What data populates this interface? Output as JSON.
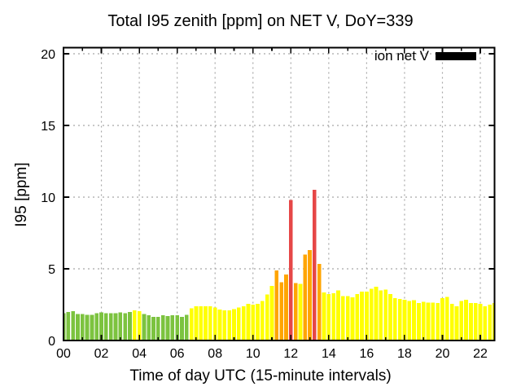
{
  "chart_data": {
    "type": "bar",
    "title": "Total I95 zenith [ppm] on NET V, DoY=339",
    "xlabel": "Time of day UTC (15-minute intervals)",
    "ylabel": "I95 [ppm]",
    "legend": {
      "label": "ion net V",
      "swatch_color": "#000000",
      "position": "top-right-inside"
    },
    "interval_minutes": 15,
    "xlim_hours": [
      0,
      22.75
    ],
    "ylim": [
      0,
      20.4
    ],
    "yticks": [
      0,
      5,
      10,
      15,
      20
    ],
    "xtick_major_hours": [
      0,
      2,
      4,
      6,
      8,
      10,
      12,
      14,
      16,
      18,
      20,
      22
    ],
    "xtick_labels": [
      "00",
      "02",
      "04",
      "06",
      "08",
      "10",
      "12",
      "14",
      "16",
      "18",
      "20",
      "22"
    ],
    "xtick_minor_hours": [
      1,
      3,
      5,
      7,
      9,
      11,
      13,
      15,
      17,
      19,
      21
    ],
    "grid": true,
    "colors": {
      "green": "#7cc33f",
      "yellow": "#ffff00",
      "orange": "#ffa500",
      "red": "#e64747",
      "grid": "#a8a8a8",
      "frame": "#000000",
      "background": "#ffffff"
    },
    "bars": [
      {
        "t": "00:00",
        "v": 1.9,
        "c": "green"
      },
      {
        "t": "00:15",
        "v": 2.0,
        "c": "green"
      },
      {
        "t": "00:30",
        "v": 2.05,
        "c": "green"
      },
      {
        "t": "00:45",
        "v": 1.85,
        "c": "green"
      },
      {
        "t": "01:00",
        "v": 1.85,
        "c": "green"
      },
      {
        "t": "01:15",
        "v": 1.8,
        "c": "green"
      },
      {
        "t": "01:30",
        "v": 1.8,
        "c": "green"
      },
      {
        "t": "01:45",
        "v": 1.9,
        "c": "green"
      },
      {
        "t": "02:00",
        "v": 1.95,
        "c": "green"
      },
      {
        "t": "02:15",
        "v": 1.9,
        "c": "green"
      },
      {
        "t": "02:30",
        "v": 1.9,
        "c": "green"
      },
      {
        "t": "02:45",
        "v": 1.9,
        "c": "green"
      },
      {
        "t": "03:00",
        "v": 1.95,
        "c": "green"
      },
      {
        "t": "03:15",
        "v": 1.9,
        "c": "green"
      },
      {
        "t": "03:30",
        "v": 2.0,
        "c": "green"
      },
      {
        "t": "03:45",
        "v": 2.1,
        "c": "yellow"
      },
      {
        "t": "04:00",
        "v": 2.05,
        "c": "yellow"
      },
      {
        "t": "04:15",
        "v": 1.85,
        "c": "green"
      },
      {
        "t": "04:30",
        "v": 1.75,
        "c": "green"
      },
      {
        "t": "04:45",
        "v": 1.65,
        "c": "green"
      },
      {
        "t": "05:00",
        "v": 1.65,
        "c": "green"
      },
      {
        "t": "05:15",
        "v": 1.75,
        "c": "green"
      },
      {
        "t": "05:30",
        "v": 1.7,
        "c": "green"
      },
      {
        "t": "05:45",
        "v": 1.75,
        "c": "green"
      },
      {
        "t": "06:00",
        "v": 1.75,
        "c": "green"
      },
      {
        "t": "06:15",
        "v": 1.65,
        "c": "green"
      },
      {
        "t": "06:30",
        "v": 1.8,
        "c": "green"
      },
      {
        "t": "06:45",
        "v": 2.25,
        "c": "yellow"
      },
      {
        "t": "07:00",
        "v": 2.4,
        "c": "yellow"
      },
      {
        "t": "07:15",
        "v": 2.4,
        "c": "yellow"
      },
      {
        "t": "07:30",
        "v": 2.4,
        "c": "yellow"
      },
      {
        "t": "07:45",
        "v": 2.4,
        "c": "yellow"
      },
      {
        "t": "08:00",
        "v": 2.3,
        "c": "yellow"
      },
      {
        "t": "08:15",
        "v": 2.15,
        "c": "yellow"
      },
      {
        "t": "08:30",
        "v": 2.1,
        "c": "yellow"
      },
      {
        "t": "08:45",
        "v": 2.1,
        "c": "yellow"
      },
      {
        "t": "09:00",
        "v": 2.2,
        "c": "yellow"
      },
      {
        "t": "09:15",
        "v": 2.3,
        "c": "yellow"
      },
      {
        "t": "09:30",
        "v": 2.4,
        "c": "yellow"
      },
      {
        "t": "09:45",
        "v": 2.55,
        "c": "yellow"
      },
      {
        "t": "10:00",
        "v": 2.5,
        "c": "yellow"
      },
      {
        "t": "10:15",
        "v": 2.55,
        "c": "yellow"
      },
      {
        "t": "10:30",
        "v": 2.75,
        "c": "yellow"
      },
      {
        "t": "10:45",
        "v": 3.2,
        "c": "yellow"
      },
      {
        "t": "11:00",
        "v": 3.8,
        "c": "yellow"
      },
      {
        "t": "11:15",
        "v": 4.9,
        "c": "orange"
      },
      {
        "t": "11:30",
        "v": 4.05,
        "c": "orange"
      },
      {
        "t": "11:45",
        "v": 4.6,
        "c": "orange"
      },
      {
        "t": "12:00",
        "v": 9.8,
        "c": "red"
      },
      {
        "t": "12:15",
        "v": 4.0,
        "c": "orange"
      },
      {
        "t": "12:30",
        "v": 3.95,
        "c": "yellow"
      },
      {
        "t": "12:45",
        "v": 6.0,
        "c": "orange"
      },
      {
        "t": "13:00",
        "v": 6.3,
        "c": "orange"
      },
      {
        "t": "13:15",
        "v": 10.5,
        "c": "red"
      },
      {
        "t": "13:30",
        "v": 5.35,
        "c": "orange"
      },
      {
        "t": "13:45",
        "v": 3.35,
        "c": "yellow"
      },
      {
        "t": "14:00",
        "v": 3.25,
        "c": "yellow"
      },
      {
        "t": "14:15",
        "v": 3.3,
        "c": "yellow"
      },
      {
        "t": "14:30",
        "v": 3.5,
        "c": "yellow"
      },
      {
        "t": "14:45",
        "v": 3.1,
        "c": "yellow"
      },
      {
        "t": "15:00",
        "v": 3.1,
        "c": "yellow"
      },
      {
        "t": "15:15",
        "v": 3.0,
        "c": "yellow"
      },
      {
        "t": "15:30",
        "v": 3.25,
        "c": "yellow"
      },
      {
        "t": "15:45",
        "v": 3.4,
        "c": "yellow"
      },
      {
        "t": "16:00",
        "v": 3.4,
        "c": "yellow"
      },
      {
        "t": "16:15",
        "v": 3.6,
        "c": "yellow"
      },
      {
        "t": "16:30",
        "v": 3.75,
        "c": "yellow"
      },
      {
        "t": "16:45",
        "v": 3.5,
        "c": "yellow"
      },
      {
        "t": "17:00",
        "v": 3.55,
        "c": "yellow"
      },
      {
        "t": "17:15",
        "v": 3.25,
        "c": "yellow"
      },
      {
        "t": "17:30",
        "v": 2.95,
        "c": "yellow"
      },
      {
        "t": "17:45",
        "v": 2.9,
        "c": "yellow"
      },
      {
        "t": "18:00",
        "v": 2.85,
        "c": "yellow"
      },
      {
        "t": "18:15",
        "v": 2.75,
        "c": "yellow"
      },
      {
        "t": "18:30",
        "v": 2.8,
        "c": "yellow"
      },
      {
        "t": "18:45",
        "v": 2.6,
        "c": "yellow"
      },
      {
        "t": "19:00",
        "v": 2.7,
        "c": "yellow"
      },
      {
        "t": "19:15",
        "v": 2.65,
        "c": "yellow"
      },
      {
        "t": "19:30",
        "v": 2.65,
        "c": "yellow"
      },
      {
        "t": "19:45",
        "v": 2.6,
        "c": "yellow"
      },
      {
        "t": "20:00",
        "v": 2.95,
        "c": "yellow"
      },
      {
        "t": "20:15",
        "v": 3.05,
        "c": "yellow"
      },
      {
        "t": "20:30",
        "v": 2.55,
        "c": "yellow"
      },
      {
        "t": "20:45",
        "v": 2.4,
        "c": "yellow"
      },
      {
        "t": "21:00",
        "v": 2.75,
        "c": "yellow"
      },
      {
        "t": "21:15",
        "v": 2.85,
        "c": "yellow"
      },
      {
        "t": "21:30",
        "v": 2.6,
        "c": "yellow"
      },
      {
        "t": "21:45",
        "v": 2.6,
        "c": "yellow"
      },
      {
        "t": "22:00",
        "v": 2.55,
        "c": "yellow"
      },
      {
        "t": "22:15",
        "v": 2.4,
        "c": "yellow"
      },
      {
        "t": "22:30",
        "v": 2.5,
        "c": "yellow"
      },
      {
        "t": "22:45",
        "v": 2.6,
        "c": "yellow"
      }
    ]
  }
}
